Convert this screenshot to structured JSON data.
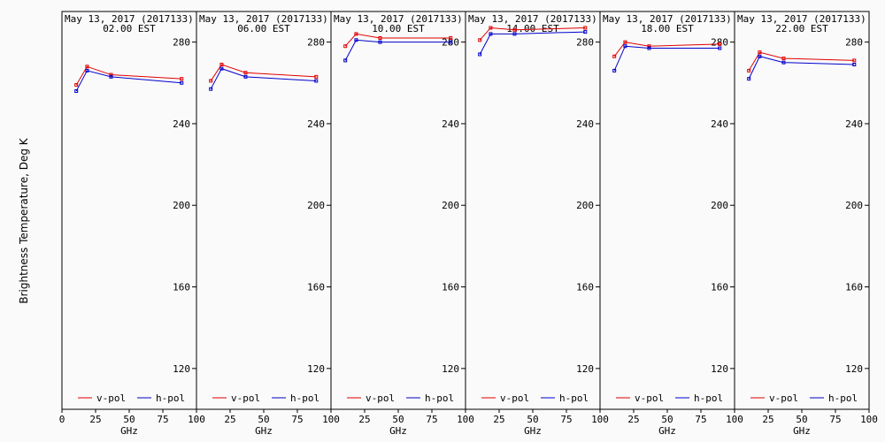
{
  "ylabel": "Brightness Temperature, Deg K",
  "xlabel": "GHz",
  "legend_v": "v-pol",
  "legend_h": "h-pol",
  "colors": {
    "v": "#e00000",
    "h": "#0000cc",
    "background": "#fafafa",
    "axis": "#000000"
  },
  "chart_data": [
    {
      "type": "line",
      "title": "May 13, 2017 (2017133)",
      "subtitle": "02.00 EST",
      "x": [
        10.65,
        18.7,
        36.5,
        89.0
      ],
      "series": [
        {
          "name": "v-pol",
          "values": [
            259,
            268,
            264,
            262
          ]
        },
        {
          "name": "h-pol",
          "values": [
            256,
            266,
            263,
            260
          ]
        }
      ],
      "xlim": [
        0,
        100
      ],
      "ylim": [
        100,
        295
      ],
      "xticks": [
        0,
        25,
        50,
        75,
        100
      ],
      "yticks": [
        120,
        160,
        200,
        240,
        280
      ],
      "legend": "bottom"
    },
    {
      "type": "line",
      "title": "May 13, 2017 (2017133)",
      "subtitle": "06.00 EST",
      "x": [
        10.65,
        18.7,
        36.5,
        89.0
      ],
      "series": [
        {
          "name": "v-pol",
          "values": [
            261,
            269,
            265,
            263
          ]
        },
        {
          "name": "h-pol",
          "values": [
            257,
            267,
            263,
            261
          ]
        }
      ],
      "xlim": [
        0,
        100
      ],
      "ylim": [
        100,
        295
      ],
      "xticks": [
        0,
        25,
        50,
        75,
        100
      ],
      "yticks": [
        120,
        160,
        200,
        240,
        280
      ],
      "legend": "bottom"
    },
    {
      "type": "line",
      "title": "May 13, 2017 (2017133)",
      "subtitle": "10.00 EST",
      "x": [
        10.65,
        18.7,
        36.5,
        89.0
      ],
      "series": [
        {
          "name": "v-pol",
          "values": [
            278,
            284,
            282,
            282
          ]
        },
        {
          "name": "h-pol",
          "values": [
            271,
            281,
            280,
            280
          ]
        }
      ],
      "xlim": [
        0,
        100
      ],
      "ylim": [
        100,
        295
      ],
      "xticks": [
        0,
        25,
        50,
        75,
        100
      ],
      "yticks": [
        120,
        160,
        200,
        240,
        280
      ],
      "legend": "bottom"
    },
    {
      "type": "line",
      "title": "May 13, 2017 (2017133)",
      "subtitle": "14.00 EST",
      "x": [
        10.65,
        18.7,
        36.5,
        89.0
      ],
      "series": [
        {
          "name": "v-pol",
          "values": [
            281,
            287,
            286,
            287
          ]
        },
        {
          "name": "h-pol",
          "values": [
            274,
            284,
            284,
            285
          ]
        }
      ],
      "xlim": [
        0,
        100
      ],
      "ylim": [
        100,
        295
      ],
      "xticks": [
        0,
        25,
        50,
        75,
        100
      ],
      "yticks": [
        120,
        160,
        200,
        240,
        280
      ],
      "legend": "bottom"
    },
    {
      "type": "line",
      "title": "May 13, 2017 (2017133)",
      "subtitle": "18.00 EST",
      "x": [
        10.65,
        18.7,
        36.5,
        89.0
      ],
      "series": [
        {
          "name": "v-pol",
          "values": [
            273,
            280,
            278,
            279
          ]
        },
        {
          "name": "h-pol",
          "values": [
            266,
            278,
            277,
            277
          ]
        }
      ],
      "xlim": [
        0,
        100
      ],
      "ylim": [
        100,
        295
      ],
      "xticks": [
        0,
        25,
        50,
        75,
        100
      ],
      "yticks": [
        120,
        160,
        200,
        240,
        280
      ],
      "legend": "bottom"
    },
    {
      "type": "line",
      "title": "May 13, 2017 (2017133)",
      "subtitle": "22.00 EST",
      "x": [
        10.65,
        18.7,
        36.5,
        89.0
      ],
      "series": [
        {
          "name": "v-pol",
          "values": [
            266,
            275,
            272,
            271
          ]
        },
        {
          "name": "h-pol",
          "values": [
            262,
            273,
            270,
            269
          ]
        }
      ],
      "xlim": [
        0,
        100
      ],
      "ylim": [
        100,
        295
      ],
      "xticks": [
        0,
        25,
        50,
        75,
        100
      ],
      "yticks": [
        120,
        160,
        200,
        240,
        280
      ],
      "legend": "bottom"
    }
  ]
}
